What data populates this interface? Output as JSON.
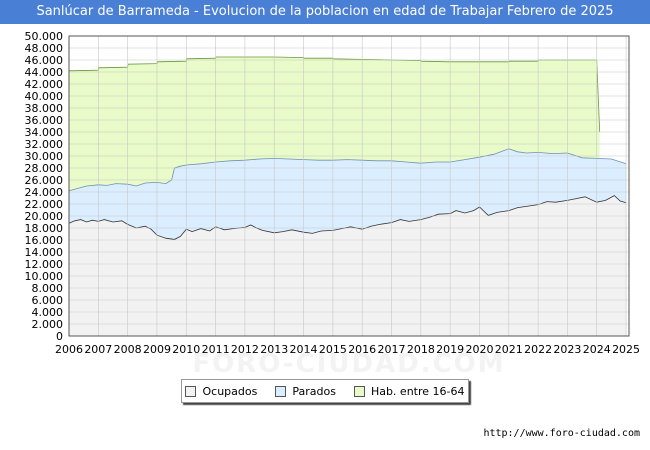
{
  "title": "Sanlúcar de Barrameda - Evolucion de la poblacion en edad de Trabajar Febrero de 2025",
  "source_url": "http://www.foro-ciudad.com",
  "watermark": "FORO-CIUDAD.COM",
  "colors": {
    "title_bg": "#4a7fd6",
    "hab_fill": "#e8fbc8",
    "hab_line": "#6a9a3a",
    "parados_fill": "#dbeeff",
    "parados_line": "#7090b0",
    "ocupados_fill": "#f2f2f2",
    "ocupados_line": "#333333"
  },
  "legend": [
    {
      "key": "ocupados",
      "label": "Ocupados",
      "color": "#f2f2f2"
    },
    {
      "key": "parados",
      "label": "Parados",
      "color": "#dbeeff"
    },
    {
      "key": "hab",
      "label": "Hab. entre 16-64",
      "color": "#e8fbc8"
    }
  ],
  "chart_data": {
    "type": "area",
    "title": "Sanlúcar de Barrameda - Evolucion de la poblacion en edad de Trabajar Febrero de 2025",
    "x_ticks": [
      2006,
      2007,
      2008,
      2009,
      2010,
      2011,
      2012,
      2013,
      2014,
      2015,
      2016,
      2017,
      2018,
      2019,
      2020,
      2021,
      2022,
      2023,
      2024,
      2025
    ],
    "xlim": [
      2006,
      2025.1
    ],
    "ylim": [
      0,
      50000
    ],
    "y_ticks": [
      0,
      2000,
      4000,
      6000,
      8000,
      10000,
      12000,
      14000,
      16000,
      18000,
      20000,
      22000,
      24000,
      26000,
      28000,
      30000,
      32000,
      34000,
      36000,
      38000,
      40000,
      42000,
      44000,
      46000,
      48000,
      50000
    ],
    "y_tick_labels": [
      "0",
      "2.000",
      "4.000",
      "6.000",
      "8.000",
      "10.000",
      "12.000",
      "14.000",
      "16.000",
      "18.000",
      "20.000",
      "22.000",
      "24.000",
      "26.000",
      "28.000",
      "30.000",
      "32.000",
      "34.000",
      "36.000",
      "38.000",
      "40.000",
      "42.000",
      "44.000",
      "46.000",
      "48.000",
      "50.000"
    ],
    "grid": true,
    "series": [
      {
        "name": "Hab. entre 16-64",
        "key": "hab",
        "points": [
          [
            2006,
            44200
          ],
          [
            2007,
            44300
          ],
          [
            2007.01,
            44700
          ],
          [
            2008,
            44800
          ],
          [
            2008.01,
            45300
          ],
          [
            2009,
            45400
          ],
          [
            2009.01,
            45700
          ],
          [
            2010,
            45800
          ],
          [
            2010.01,
            46200
          ],
          [
            2011,
            46300
          ],
          [
            2011.01,
            46500
          ],
          [
            2012,
            46500
          ],
          [
            2013,
            46500
          ],
          [
            2014,
            46400
          ],
          [
            2014.01,
            46300
          ],
          [
            2015,
            46300
          ],
          [
            2015.01,
            46200
          ],
          [
            2016,
            46100
          ],
          [
            2017,
            46000
          ],
          [
            2018,
            45900
          ],
          [
            2018.01,
            45800
          ],
          [
            2019,
            45700
          ],
          [
            2020,
            45700
          ],
          [
            2021,
            45700
          ],
          [
            2021.01,
            45800
          ],
          [
            2022,
            45800
          ],
          [
            2022.01,
            46000
          ],
          [
            2023,
            46000
          ],
          [
            2024,
            46000
          ],
          [
            2024.1,
            34000
          ]
        ]
      },
      {
        "name": "Parados",
        "key": "parados",
        "points": [
          [
            2006,
            24200
          ],
          [
            2006.3,
            24600
          ],
          [
            2006.6,
            25000
          ],
          [
            2007,
            25200
          ],
          [
            2007.3,
            25100
          ],
          [
            2007.6,
            25400
          ],
          [
            2008,
            25300
          ],
          [
            2008.3,
            25000
          ],
          [
            2008.6,
            25500
          ],
          [
            2009,
            25600
          ],
          [
            2009.3,
            25400
          ],
          [
            2009.5,
            26000
          ],
          [
            2009.6,
            28000
          ],
          [
            2009.8,
            28300
          ],
          [
            2010,
            28500
          ],
          [
            2010.5,
            28700
          ],
          [
            2011,
            29000
          ],
          [
            2011.5,
            29200
          ],
          [
            2012,
            29300
          ],
          [
            2012.5,
            29500
          ],
          [
            2013,
            29600
          ],
          [
            2013.5,
            29500
          ],
          [
            2014,
            29400
          ],
          [
            2014.5,
            29300
          ],
          [
            2015,
            29300
          ],
          [
            2015.5,
            29400
          ],
          [
            2016,
            29300
          ],
          [
            2016.5,
            29200
          ],
          [
            2017,
            29200
          ],
          [
            2017.5,
            29000
          ],
          [
            2018,
            28800
          ],
          [
            2018.5,
            29000
          ],
          [
            2019,
            29000
          ],
          [
            2019.5,
            29400
          ],
          [
            2020,
            29800
          ],
          [
            2020.5,
            30300
          ],
          [
            2021,
            31200
          ],
          [
            2021.3,
            30700
          ],
          [
            2021.6,
            30500
          ],
          [
            2022,
            30600
          ],
          [
            2022.5,
            30400
          ],
          [
            2023,
            30500
          ],
          [
            2023.5,
            29700
          ],
          [
            2024,
            29600
          ],
          [
            2024.5,
            29500
          ],
          [
            2025,
            28700
          ]
        ]
      },
      {
        "name": "Ocupados",
        "key": "ocupados",
        "points": [
          [
            2006,
            18800
          ],
          [
            2006.2,
            19200
          ],
          [
            2006.4,
            19400
          ],
          [
            2006.6,
            19000
          ],
          [
            2006.8,
            19300
          ],
          [
            2007,
            19100
          ],
          [
            2007.2,
            19400
          ],
          [
            2007.5,
            19000
          ],
          [
            2007.8,
            19200
          ],
          [
            2008,
            18600
          ],
          [
            2008.3,
            18000
          ],
          [
            2008.6,
            18300
          ],
          [
            2008.8,
            17800
          ],
          [
            2009,
            16800
          ],
          [
            2009.3,
            16300
          ],
          [
            2009.6,
            16100
          ],
          [
            2009.8,
            16600
          ],
          [
            2010,
            17800
          ],
          [
            2010.2,
            17400
          ],
          [
            2010.5,
            17900
          ],
          [
            2010.8,
            17500
          ],
          [
            2011,
            18200
          ],
          [
            2011.3,
            17700
          ],
          [
            2011.6,
            17900
          ],
          [
            2012,
            18100
          ],
          [
            2012.2,
            18500
          ],
          [
            2012.4,
            18000
          ],
          [
            2012.6,
            17600
          ],
          [
            2013,
            17200
          ],
          [
            2013.3,
            17400
          ],
          [
            2013.6,
            17700
          ],
          [
            2014,
            17300
          ],
          [
            2014.3,
            17100
          ],
          [
            2014.6,
            17500
          ],
          [
            2015,
            17600
          ],
          [
            2015.3,
            17900
          ],
          [
            2015.6,
            18200
          ],
          [
            2016,
            17800
          ],
          [
            2016.3,
            18300
          ],
          [
            2016.6,
            18600
          ],
          [
            2017,
            18900
          ],
          [
            2017.3,
            19400
          ],
          [
            2017.6,
            19100
          ],
          [
            2018,
            19400
          ],
          [
            2018.3,
            19800
          ],
          [
            2018.6,
            20300
          ],
          [
            2019,
            20400
          ],
          [
            2019.2,
            20900
          ],
          [
            2019.5,
            20500
          ],
          [
            2019.8,
            20900
          ],
          [
            2020,
            21500
          ],
          [
            2020.3,
            20100
          ],
          [
            2020.6,
            20600
          ],
          [
            2021,
            20900
          ],
          [
            2021.3,
            21400
          ],
          [
            2021.6,
            21600
          ],
          [
            2022,
            21900
          ],
          [
            2022.3,
            22400
          ],
          [
            2022.6,
            22300
          ],
          [
            2023,
            22600
          ],
          [
            2023.3,
            22900
          ],
          [
            2023.6,
            23200
          ],
          [
            2024,
            22300
          ],
          [
            2024.3,
            22600
          ],
          [
            2024.6,
            23400
          ],
          [
            2024.8,
            22500
          ],
          [
            2025,
            22200
          ]
        ]
      }
    ]
  }
}
